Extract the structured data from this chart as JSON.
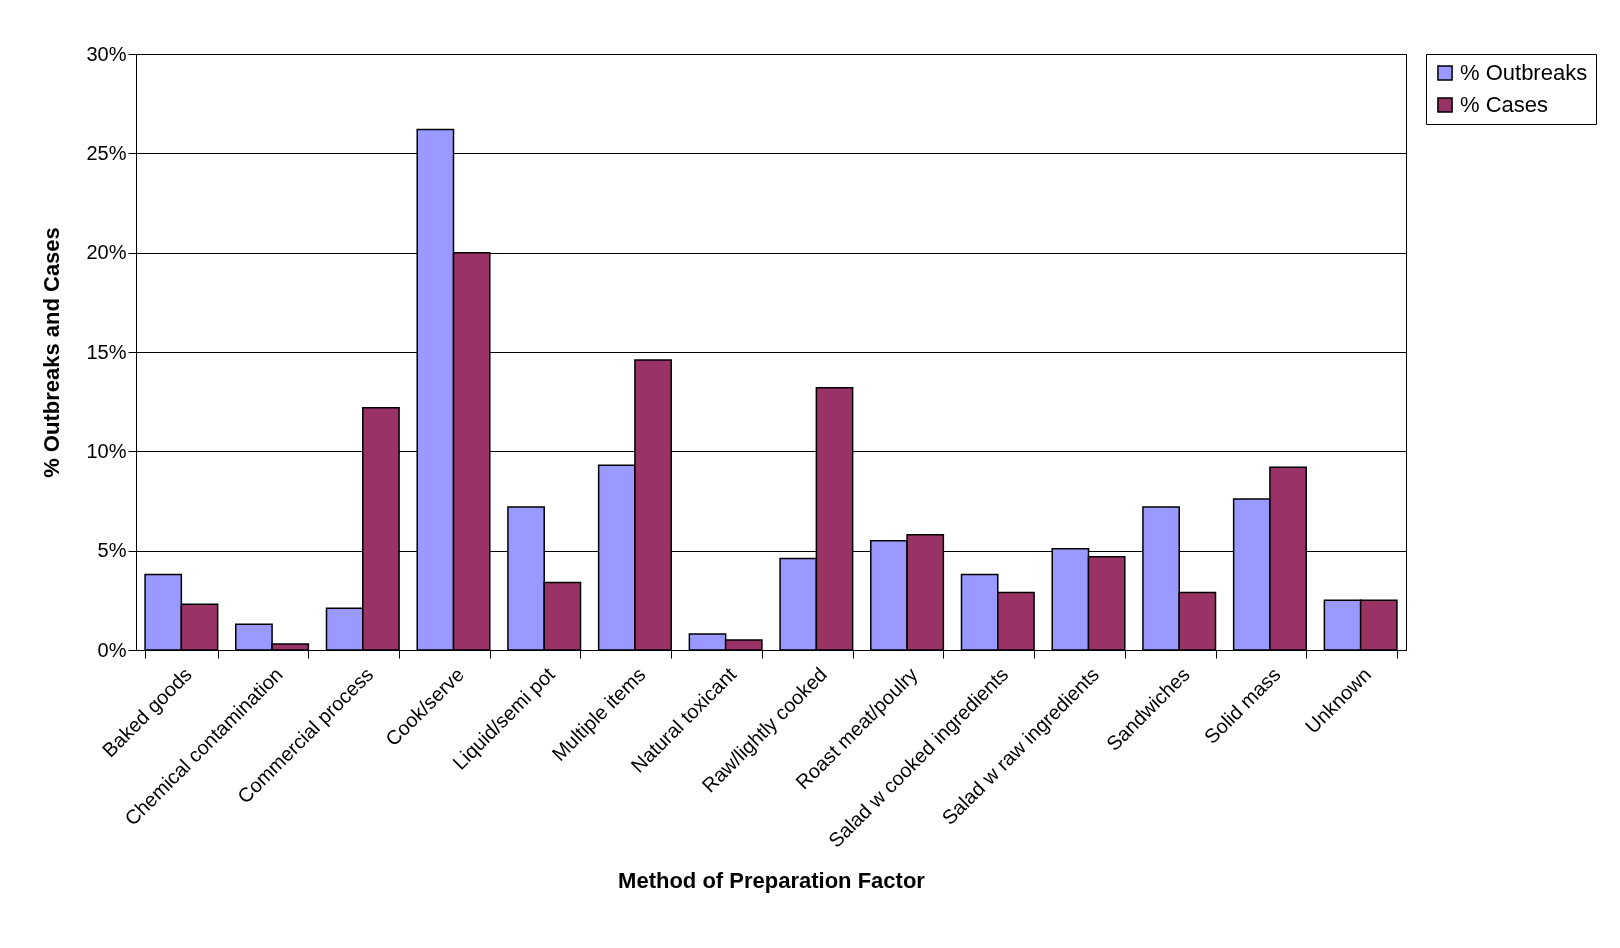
{
  "chart_data": {
    "type": "bar",
    "xlabel": "Method of Preparation Factor",
    "ylabel": "% Outbreaks and Cases",
    "categories": [
      "Baked goods",
      "Chemical contamination",
      "Commercial process",
      "Cook/serve",
      "Liquid/semi pot",
      "Multiple items",
      "Natural toxicant",
      "Raw/lightly cooked",
      "Roast meat/poulry",
      "Salad w cooked ingredients",
      "Salad w raw ingredients",
      "Sandwiches",
      "Solid mass",
      "Unknown"
    ],
    "series": [
      {
        "name": "% Outbreaks",
        "color": "#9999ff",
        "values": [
          3.8,
          1.3,
          2.1,
          26.2,
          7.2,
          9.3,
          0.8,
          4.6,
          5.5,
          3.8,
          5.1,
          7.2,
          7.6,
          2.5
        ]
      },
      {
        "name": "% Cases",
        "color": "#993366",
        "values": [
          2.3,
          0.3,
          12.2,
          20.0,
          3.4,
          14.6,
          0.5,
          13.2,
          5.8,
          2.9,
          4.7,
          2.9,
          9.2,
          2.5
        ]
      }
    ],
    "ylim": [
      0,
      30
    ],
    "yticks": [
      {
        "value": 0,
        "label": "0%"
      },
      {
        "value": 5,
        "label": "5%"
      },
      {
        "value": 10,
        "label": "10%"
      },
      {
        "value": 15,
        "label": "15%"
      },
      {
        "value": 20,
        "label": "20%"
      },
      {
        "value": 25,
        "label": "25%"
      },
      {
        "value": 30,
        "label": "30%"
      }
    ],
    "grid": "y",
    "legend": "right"
  }
}
